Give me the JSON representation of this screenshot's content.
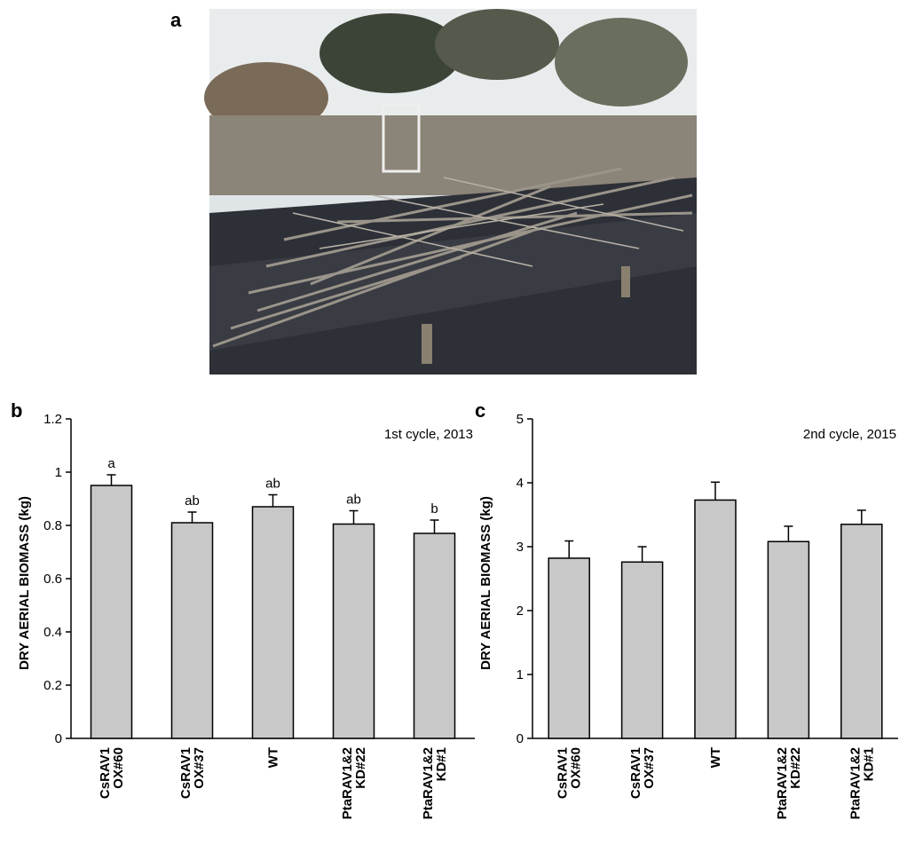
{
  "photo_panel": {
    "label": "a"
  },
  "chart_data": [
    {
      "type": "bar",
      "panel_label": "b",
      "subtitle": "1st cycle, 2013",
      "y_label": "DRY AERIAL BIOMASS (kg)",
      "categories": [
        "CsRAV1 OX#60",
        "CsRAV1 OX#37",
        "WT",
        "PtaRAV1&2 KD#22",
        "PtaRAV1&2 KD#1"
      ],
      "values": [
        0.95,
        0.81,
        0.87,
        0.805,
        0.77
      ],
      "errors": [
        0.04,
        0.04,
        0.045,
        0.05,
        0.05
      ],
      "annotations": [
        "a",
        "ab",
        "ab",
        "ab",
        "b"
      ],
      "color": "#c8c8c8",
      "ylim": [
        0,
        1.2
      ],
      "yticks": [
        0,
        0.2,
        0.4,
        0.6,
        0.8,
        1,
        1.2
      ]
    },
    {
      "type": "bar",
      "panel_label": "c",
      "subtitle": "2nd cycle, 2015",
      "y_label": "DRY AERIAL BIOMASS (kg)",
      "categories": [
        "CsRAV1 OX#60",
        "CsRAV1 OX#37",
        "WT",
        "PtaRAV1&2 KD#22",
        "PtaRAV1&2 KD#1"
      ],
      "values": [
        2.82,
        2.76,
        3.73,
        3.08,
        3.35
      ],
      "errors": [
        0.27,
        0.24,
        0.28,
        0.24,
        0.22
      ],
      "color": "#c8c8c8",
      "ylim": [
        0,
        5
      ],
      "yticks": [
        0,
        1,
        2,
        3,
        4,
        5
      ]
    }
  ]
}
